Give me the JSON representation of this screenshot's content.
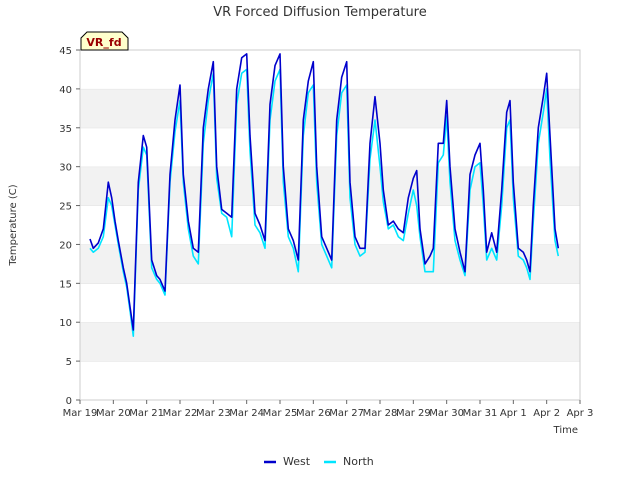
{
  "chart_data": {
    "type": "line",
    "title": "VR Forced Diffusion Temperature",
    "xlabel": "Time",
    "ylabel": "Temperature (C)",
    "badge": "VR_fd",
    "ylim": [
      0,
      45
    ],
    "yticks": [
      0,
      5,
      10,
      15,
      20,
      25,
      30,
      35,
      40,
      45
    ],
    "xlim": [
      "Mar 19",
      "Apr 3"
    ],
    "xticks": [
      "Mar 19",
      "Mar 20",
      "Mar 21",
      "Mar 22",
      "Mar 23",
      "Mar 24",
      "Mar 25",
      "Mar 26",
      "Mar 27",
      "Mar 28",
      "Mar 29",
      "Mar 30",
      "Mar 31",
      "Apr 1",
      "Apr 2",
      "Apr 3"
    ],
    "legend_position": "bottom-center",
    "grid": "alternating horizontal bands",
    "x_unit_note": "x values in days since Mar 19 00:00",
    "series": [
      {
        "name": "West",
        "color": "#0000cc",
        "x": [
          0.3,
          0.4,
          0.55,
          0.7,
          0.85,
          0.95,
          1.05,
          1.15,
          1.3,
          1.4,
          1.5,
          1.6,
          1.75,
          1.9,
          2.0,
          2.15,
          2.3,
          2.4,
          2.55,
          2.7,
          2.85,
          3.0,
          3.1,
          3.25,
          3.4,
          3.55,
          3.7,
          3.85,
          4.0,
          4.1,
          4.25,
          4.4,
          4.55,
          4.7,
          4.85,
          5.0,
          5.1,
          5.25,
          5.4,
          5.55,
          5.7,
          5.85,
          6.0,
          6.1,
          6.25,
          6.4,
          6.55,
          6.7,
          6.85,
          7.0,
          7.1,
          7.25,
          7.4,
          7.55,
          7.7,
          7.85,
          8.0,
          8.1,
          8.25,
          8.4,
          8.55,
          8.7,
          8.85,
          9.0,
          9.1,
          9.25,
          9.4,
          9.55,
          9.7,
          9.85,
          10.0,
          10.1,
          10.2,
          10.35,
          10.5,
          10.6,
          10.75,
          10.9,
          11.0,
          11.1,
          11.25,
          11.4,
          11.55,
          11.7,
          11.85,
          12.0,
          12.1,
          12.2,
          12.35,
          12.5,
          12.65,
          12.8,
          12.9,
          13.0,
          13.15,
          13.3,
          13.4,
          13.5,
          13.6,
          13.75,
          13.9,
          14.0,
          14.1,
          14.25,
          14.35
        ],
        "y": [
          20.7,
          19.5,
          20.2,
          22.0,
          28.0,
          26.0,
          23.0,
          20.5,
          17.0,
          15.0,
          12.0,
          9.0,
          28.0,
          34.0,
          32.5,
          18.0,
          16.0,
          15.5,
          14.0,
          29.0,
          36.0,
          40.5,
          29.0,
          23.0,
          19.5,
          19.0,
          35.0,
          40.0,
          43.5,
          30.0,
          24.5,
          24.0,
          23.5,
          40.0,
          44.0,
          44.5,
          34.0,
          24.0,
          22.5,
          20.5,
          38.0,
          43.0,
          44.5,
          30.0,
          22.0,
          20.5,
          18.0,
          36.0,
          41.0,
          43.5,
          30.0,
          21.0,
          19.5,
          18.0,
          36.0,
          41.5,
          43.5,
          28.0,
          21.0,
          19.5,
          19.5,
          33.0,
          39.0,
          33.0,
          27.0,
          22.5,
          23.0,
          22.0,
          21.5,
          26.0,
          28.5,
          29.5,
          22.0,
          17.5,
          18.5,
          19.5,
          33.0,
          33.0,
          38.5,
          30.0,
          22.0,
          19.0,
          16.5,
          29.0,
          31.5,
          33.0,
          27.0,
          19.0,
          21.5,
          19.0,
          27.0,
          37.0,
          38.5,
          28.0,
          19.5,
          19.0,
          18.0,
          16.5,
          25.0,
          35.0,
          39.0,
          42.0,
          34.0,
          22.0,
          19.5
        ]
      },
      {
        "name": "North",
        "color": "#00e5ff",
        "x": [
          0.3,
          0.4,
          0.55,
          0.7,
          0.85,
          0.95,
          1.05,
          1.15,
          1.3,
          1.4,
          1.5,
          1.6,
          1.75,
          1.9,
          2.0,
          2.15,
          2.3,
          2.4,
          2.55,
          2.7,
          2.85,
          3.0,
          3.1,
          3.25,
          3.4,
          3.55,
          3.7,
          3.85,
          4.0,
          4.1,
          4.25,
          4.4,
          4.55,
          4.7,
          4.85,
          5.0,
          5.1,
          5.25,
          5.4,
          5.55,
          5.7,
          5.85,
          6.0,
          6.1,
          6.25,
          6.4,
          6.55,
          6.7,
          6.85,
          7.0,
          7.1,
          7.25,
          7.4,
          7.55,
          7.7,
          7.85,
          8.0,
          8.1,
          8.25,
          8.4,
          8.55,
          8.7,
          8.85,
          9.0,
          9.1,
          9.25,
          9.4,
          9.55,
          9.7,
          9.85,
          10.0,
          10.1,
          10.2,
          10.35,
          10.5,
          10.6,
          10.75,
          10.9,
          11.0,
          11.1,
          11.25,
          11.4,
          11.55,
          11.7,
          11.85,
          12.0,
          12.1,
          12.2,
          12.35,
          12.5,
          12.65,
          12.8,
          12.9,
          13.0,
          13.15,
          13.3,
          13.4,
          13.5,
          13.6,
          13.75,
          13.9,
          14.0,
          14.1,
          14.25,
          14.35
        ],
        "y": [
          19.5,
          19.0,
          19.5,
          21.0,
          26.0,
          25.0,
          22.5,
          20.0,
          16.5,
          14.5,
          11.5,
          8.2,
          27.0,
          32.5,
          31.5,
          17.0,
          15.5,
          15.0,
          13.5,
          28.0,
          34.5,
          38.5,
          28.0,
          22.0,
          18.5,
          17.5,
          33.0,
          38.5,
          42.0,
          28.5,
          24.0,
          23.5,
          21.0,
          38.0,
          42.0,
          42.5,
          32.0,
          22.5,
          21.5,
          19.5,
          36.0,
          41.0,
          42.5,
          28.0,
          21.0,
          19.5,
          16.5,
          34.0,
          39.5,
          40.5,
          28.0,
          20.0,
          18.5,
          17.0,
          34.0,
          39.5,
          40.5,
          26.0,
          20.0,
          18.5,
          19.0,
          31.0,
          36.0,
          30.0,
          25.5,
          22.0,
          22.5,
          21.0,
          20.5,
          24.0,
          27.0,
          25.0,
          21.0,
          16.5,
          16.5,
          16.5,
          30.5,
          31.5,
          36.5,
          28.0,
          20.5,
          18.0,
          16.0,
          27.0,
          30.0,
          30.5,
          25.0,
          18.0,
          19.5,
          18.0,
          25.0,
          35.0,
          36.0,
          26.0,
          18.5,
          18.0,
          17.0,
          15.5,
          23.0,
          33.0,
          37.0,
          40.0,
          31.0,
          20.5,
          18.5
        ]
      }
    ]
  }
}
